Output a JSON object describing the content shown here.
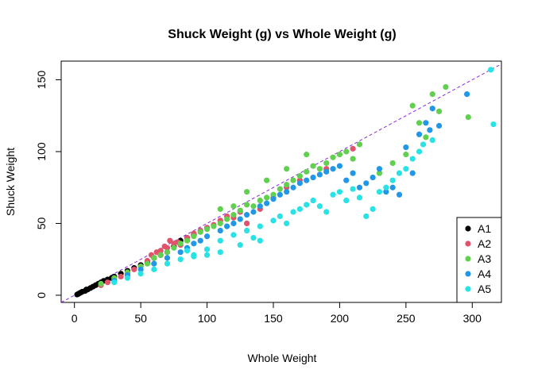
{
  "chart_data": {
    "type": "scatter",
    "title": "Shuck Weight (g) vs Whole Weight (g)",
    "xlabel": "Whole Weight",
    "ylabel": "Shuck Weight",
    "xlim": [
      -10,
      322
    ],
    "ylim": [
      -5,
      163
    ],
    "xticks": [
      0,
      50,
      100,
      150,
      200,
      250,
      300
    ],
    "yticks": [
      0,
      50,
      100,
      150
    ],
    "grid": false,
    "legend_position": "bottom-right",
    "reference_line": {
      "slope": 0.5,
      "intercept": 0,
      "style": "dashed",
      "color": "#8a2be2"
    },
    "series": [
      {
        "name": "A1",
        "color": "#000000",
        "points": [
          [
            2,
            0.5
          ],
          [
            3,
            1
          ],
          [
            4,
            1.5
          ],
          [
            5,
            2
          ],
          [
            6,
            2.5
          ],
          [
            8,
            3
          ],
          [
            9,
            4
          ],
          [
            10,
            4
          ],
          [
            12,
            5
          ],
          [
            14,
            6
          ],
          [
            16,
            7
          ],
          [
            18,
            8
          ],
          [
            20,
            9
          ],
          [
            22,
            10
          ],
          [
            25,
            11
          ],
          [
            28,
            12
          ],
          [
            30,
            13
          ],
          [
            35,
            15
          ],
          [
            40,
            17
          ],
          [
            45,
            19
          ],
          [
            50,
            21
          ],
          [
            55,
            23
          ],
          [
            60,
            26
          ],
          [
            65,
            28
          ],
          [
            70,
            30
          ],
          [
            75,
            34
          ],
          [
            80,
            38
          ],
          [
            85,
            40
          ],
          [
            90,
            42
          ]
        ]
      },
      {
        "name": "A2",
        "color": "#df536b",
        "points": [
          [
            20,
            7
          ],
          [
            25,
            9
          ],
          [
            30,
            11
          ],
          [
            35,
            13
          ],
          [
            40,
            15
          ],
          [
            45,
            18
          ],
          [
            50,
            20
          ],
          [
            55,
            24
          ],
          [
            58,
            28
          ],
          [
            60,
            26
          ],
          [
            62,
            30
          ],
          [
            65,
            31
          ],
          [
            68,
            34
          ],
          [
            70,
            33
          ],
          [
            72,
            38
          ],
          [
            75,
            36
          ],
          [
            78,
            37
          ],
          [
            80,
            35
          ],
          [
            85,
            40
          ],
          [
            90,
            43
          ],
          [
            95,
            45
          ],
          [
            100,
            47
          ],
          [
            105,
            49
          ],
          [
            110,
            52
          ],
          [
            115,
            55
          ],
          [
            120,
            54
          ],
          [
            125,
            58
          ],
          [
            130,
            50
          ],
          [
            140,
            60
          ],
          [
            150,
            68
          ],
          [
            160,
            75
          ],
          [
            170,
            80
          ],
          [
            190,
            88
          ],
          [
            210,
            102
          ]
        ]
      },
      {
        "name": "A3",
        "color": "#61d04f",
        "points": [
          [
            20,
            8
          ],
          [
            30,
            12
          ],
          [
            40,
            16
          ],
          [
            50,
            20
          ],
          [
            55,
            22
          ],
          [
            60,
            26
          ],
          [
            65,
            28
          ],
          [
            70,
            30
          ],
          [
            75,
            33
          ],
          [
            80,
            36
          ],
          [
            85,
            38
          ],
          [
            90,
            41
          ],
          [
            95,
            44
          ],
          [
            100,
            46
          ],
          [
            105,
            48
          ],
          [
            110,
            50
          ],
          [
            115,
            53
          ],
          [
            120,
            56
          ],
          [
            125,
            59
          ],
          [
            130,
            63
          ],
          [
            135,
            62
          ],
          [
            140,
            66
          ],
          [
            145,
            68
          ],
          [
            150,
            70
          ],
          [
            155,
            74
          ],
          [
            160,
            77
          ],
          [
            165,
            80
          ],
          [
            170,
            83
          ],
          [
            175,
            86
          ],
          [
            180,
            90
          ],
          [
            185,
            88
          ],
          [
            190,
            92
          ],
          [
            195,
            96
          ],
          [
            200,
            98
          ],
          [
            205,
            100
          ],
          [
            210,
            95
          ],
          [
            215,
            105
          ],
          [
            175,
            98
          ],
          [
            160,
            88
          ],
          [
            145,
            80
          ],
          [
            130,
            72
          ],
          [
            120,
            62
          ],
          [
            110,
            60
          ],
          [
            230,
            85
          ],
          [
            240,
            92
          ],
          [
            250,
            98
          ],
          [
            255,
            132
          ],
          [
            260,
            120
          ],
          [
            265,
            110
          ],
          [
            270,
            140
          ],
          [
            275,
            128
          ],
          [
            280,
            145
          ],
          [
            297,
            124
          ]
        ]
      },
      {
        "name": "A4",
        "color": "#2297e6",
        "points": [
          [
            30,
            10
          ],
          [
            40,
            14
          ],
          [
            50,
            18
          ],
          [
            60,
            22
          ],
          [
            70,
            26
          ],
          [
            80,
            30
          ],
          [
            85,
            33
          ],
          [
            90,
            36
          ],
          [
            95,
            38
          ],
          [
            100,
            41
          ],
          [
            110,
            45
          ],
          [
            115,
            48
          ],
          [
            120,
            50
          ],
          [
            125,
            53
          ],
          [
            130,
            56
          ],
          [
            135,
            58
          ],
          [
            140,
            62
          ],
          [
            145,
            64
          ],
          [
            150,
            67
          ],
          [
            155,
            70
          ],
          [
            160,
            72
          ],
          [
            165,
            75
          ],
          [
            170,
            78
          ],
          [
            175,
            80
          ],
          [
            180,
            82
          ],
          [
            185,
            84
          ],
          [
            190,
            86
          ],
          [
            195,
            88
          ],
          [
            200,
            90
          ],
          [
            205,
            80
          ],
          [
            210,
            85
          ],
          [
            215,
            75
          ],
          [
            220,
            78
          ],
          [
            225,
            82
          ],
          [
            230,
            88
          ],
          [
            235,
            72
          ],
          [
            240,
            75
          ],
          [
            245,
            70
          ],
          [
            250,
            103
          ],
          [
            255,
            85
          ],
          [
            260,
            112
          ],
          [
            265,
            120
          ],
          [
            268,
            115
          ],
          [
            270,
            130
          ],
          [
            275,
            118
          ],
          [
            296,
            140
          ]
        ]
      },
      {
        "name": "A5",
        "color": "#28e2e5",
        "points": [
          [
            30,
            9
          ],
          [
            40,
            12
          ],
          [
            50,
            15
          ],
          [
            60,
            18
          ],
          [
            70,
            22
          ],
          [
            80,
            25
          ],
          [
            90,
            28
          ],
          [
            100,
            32
          ],
          [
            110,
            38
          ],
          [
            120,
            42
          ],
          [
            130,
            45
          ],
          [
            140,
            48
          ],
          [
            150,
            52
          ],
          [
            155,
            55
          ],
          [
            160,
            50
          ],
          [
            165,
            58
          ],
          [
            170,
            60
          ],
          [
            175,
            63
          ],
          [
            180,
            66
          ],
          [
            185,
            62
          ],
          [
            190,
            58
          ],
          [
            195,
            70
          ],
          [
            200,
            72
          ],
          [
            205,
            66
          ],
          [
            210,
            74
          ],
          [
            215,
            68
          ],
          [
            220,
            55
          ],
          [
            225,
            60
          ],
          [
            230,
            72
          ],
          [
            235,
            75
          ],
          [
            240,
            80
          ],
          [
            245,
            85
          ],
          [
            250,
            88
          ],
          [
            255,
            95
          ],
          [
            260,
            100
          ],
          [
            263,
            105
          ],
          [
            270,
            108
          ],
          [
            140,
            38
          ],
          [
            135,
            40
          ],
          [
            125,
            35
          ],
          [
            110,
            30
          ],
          [
            100,
            28
          ],
          [
            90,
            27
          ],
          [
            85,
            31
          ],
          [
            314,
            157
          ],
          [
            316,
            119
          ]
        ]
      }
    ]
  }
}
